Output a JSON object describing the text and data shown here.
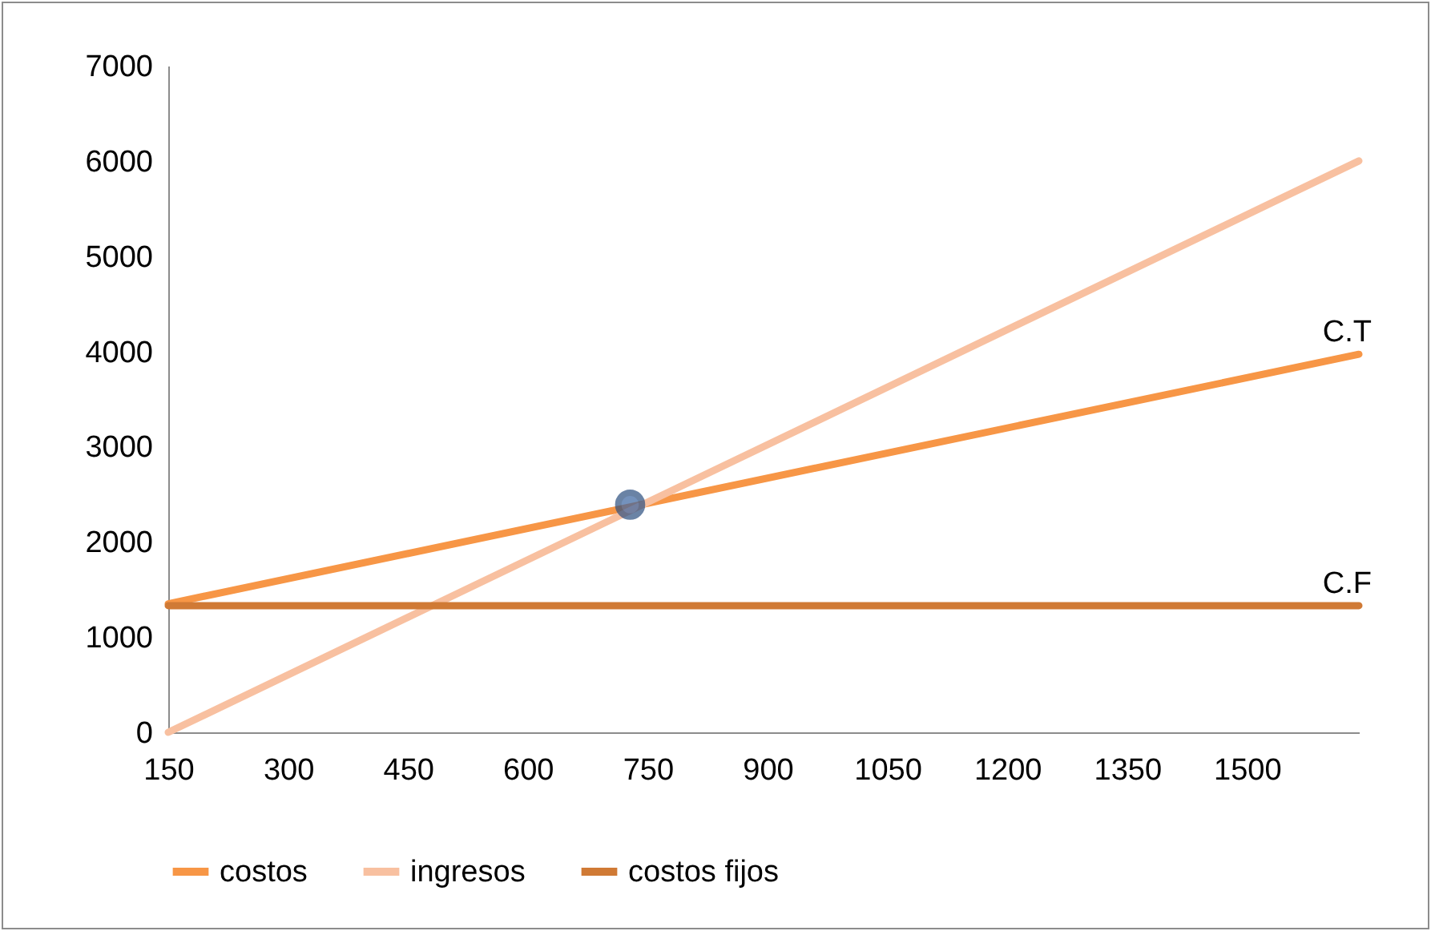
{
  "chart_data": {
    "type": "line",
    "xlim": [
      150,
      1640
    ],
    "xticks": [
      150,
      300,
      450,
      600,
      750,
      900,
      1050,
      1200,
      1350,
      1500
    ],
    "ylim": [
      0,
      7000
    ],
    "yticks": [
      0,
      1000,
      2000,
      3000,
      4000,
      5000,
      6000,
      7000
    ],
    "grid": false,
    "legend": "bottom",
    "line_style": "solid",
    "series": [
      {
        "name": "costos",
        "color": "#f79646",
        "x": [
          150,
          1640
        ],
        "values": [
          1350,
          3970
        ]
      },
      {
        "name": "ingresos",
        "color": "#f8c0a0",
        "x": [
          150,
          1640
        ],
        "values": [
          0,
          6000
        ]
      },
      {
        "name": "costos fijos",
        "color": "#d07a35",
        "x": [
          150,
          1640
        ],
        "values": [
          1330,
          1330
        ]
      },
      {
        "type": "scatter",
        "marker": "circle",
        "color": "#3a64a0",
        "x": [
          728
        ],
        "values": [
          2390
        ]
      }
    ],
    "annotations": [
      {
        "text": "C.T",
        "x": 1640,
        "y": 3970
      },
      {
        "text": "C.F",
        "x": 1640,
        "y": 1330
      }
    ]
  }
}
